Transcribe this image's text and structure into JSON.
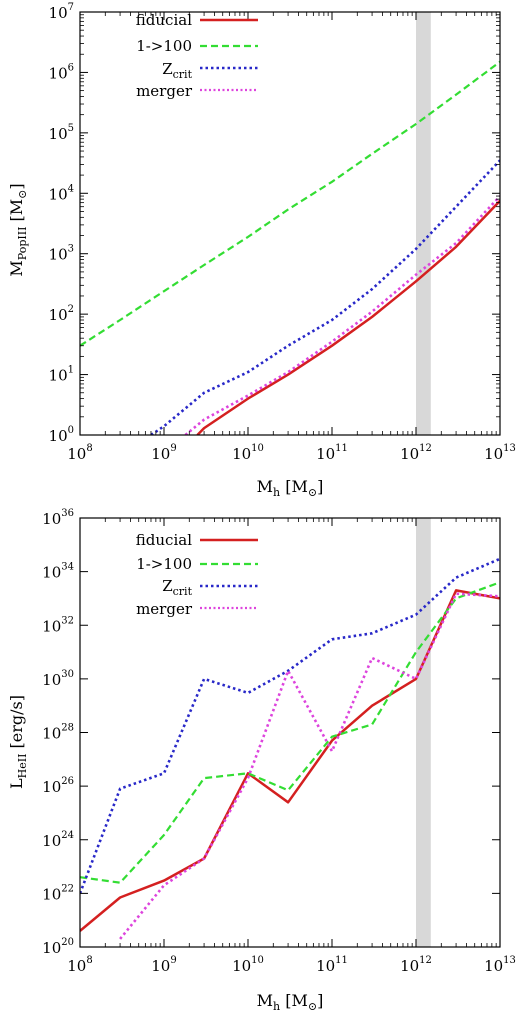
{
  "chart_data": [
    {
      "type": "line",
      "xscale": "log",
      "yscale": "log",
      "xlim": [
        100000000.0,
        10000000000000.0
      ],
      "ylim": [
        1,
        10000000.0
      ],
      "xlabel": {
        "main": "M",
        "sub": "h",
        "unit": " [M",
        "unit_sub": "⊙",
        "close": "]"
      },
      "ylabel": {
        "main": "M",
        "sub": "PopIII",
        "unit": " [M",
        "unit_sub": "⊙",
        "close": "]"
      },
      "xticks": [
        {
          "base": "10",
          "exp": "8"
        },
        {
          "base": "10",
          "exp": "9"
        },
        {
          "base": "10",
          "exp": "10"
        },
        {
          "base": "10",
          "exp": "11"
        },
        {
          "base": "10",
          "exp": "12"
        },
        {
          "base": "10",
          "exp": "13"
        }
      ],
      "yticks": [
        {
          "base": "10",
          "exp": "0"
        },
        {
          "base": "10",
          "exp": "1"
        },
        {
          "base": "10",
          "exp": "2"
        },
        {
          "base": "10",
          "exp": "3"
        },
        {
          "base": "10",
          "exp": "4"
        },
        {
          "base": "10",
          "exp": "5"
        },
        {
          "base": "10",
          "exp": "6"
        },
        {
          "base": "10",
          "exp": "7"
        }
      ],
      "shaded_band_x": [
        1000000000000.0,
        1500000000000.0
      ],
      "legend_position": "top-left",
      "series": [
        {
          "name": "fiducial",
          "color": "#d42020",
          "dash": "solid",
          "x": [
            2500000000.0,
            3000000000.0,
            10000000000.0,
            30000000000.0,
            100000000000.0,
            300000000000.0,
            1000000000000.0,
            3000000000000.0,
            10000000000000.0
          ],
          "y": [
            1,
            1.3,
            4,
            10,
            30,
            90,
            350,
            1300,
            7500
          ]
        },
        {
          "name": "1->100",
          "color": "#33dd33",
          "dash": "dashed",
          "x": [
            100000000.0,
            300000000.0,
            1000000000.0,
            3000000000.0,
            10000000000.0,
            30000000000.0,
            100000000000.0,
            300000000000.0,
            1000000000000.0,
            3000000000000.0,
            10000000000000.0
          ],
          "y": [
            30,
            80,
            240,
            650,
            1900,
            5400,
            15500,
            45000,
            140000,
            430000,
            1500000
          ]
        },
        {
          "name": "Z_crit",
          "color": "#2828c8",
          "dash": "dotted",
          "x": [
            700000000.0,
            1000000000.0,
            3000000000.0,
            10000000000.0,
            30000000000.0,
            100000000000.0,
            300000000000.0,
            1000000000000.0,
            3000000000000.0,
            10000000000000.0
          ],
          "y": [
            1,
            1.4,
            5,
            11,
            30,
            80,
            260,
            1200,
            6000,
            35000
          ]
        },
        {
          "name": "merger",
          "color": "#dd44dd",
          "dash": "dotted",
          "x": [
            1800000000.0,
            3000000000.0,
            10000000000.0,
            30000000000.0,
            100000000000.0,
            300000000000.0,
            1000000000000.0,
            3000000000000.0,
            10000000000000.0
          ],
          "y": [
            1,
            1.8,
            4.5,
            11,
            35,
            110,
            450,
            1500,
            9000
          ]
        }
      ]
    },
    {
      "type": "line",
      "xscale": "log",
      "yscale": "log",
      "xlim": [
        100000000.0,
        10000000000000.0
      ],
      "ylim": [
        1e+20,
        1e+36
      ],
      "xlabel": {
        "main": "M",
        "sub": "h",
        "unit": " [M",
        "unit_sub": "⊙",
        "close": "]"
      },
      "ylabel": {
        "main": "L",
        "sub": "HeII",
        "unit": " [erg/s]",
        "unit_sub": "",
        "close": ""
      },
      "xticks": [
        {
          "base": "10",
          "exp": "8"
        },
        {
          "base": "10",
          "exp": "9"
        },
        {
          "base": "10",
          "exp": "10"
        },
        {
          "base": "10",
          "exp": "11"
        },
        {
          "base": "10",
          "exp": "12"
        },
        {
          "base": "10",
          "exp": "13"
        }
      ],
      "yticks": [
        {
          "base": "10",
          "exp": "20"
        },
        {
          "base": "10",
          "exp": "22"
        },
        {
          "base": "10",
          "exp": "24"
        },
        {
          "base": "10",
          "exp": "26"
        },
        {
          "base": "10",
          "exp": "28"
        },
        {
          "base": "10",
          "exp": "30"
        },
        {
          "base": "10",
          "exp": "32"
        },
        {
          "base": "10",
          "exp": "34"
        },
        {
          "base": "10",
          "exp": "36"
        }
      ],
      "shaded_band_x": [
        1000000000000.0,
        1500000000000.0
      ],
      "legend_position": "top-left",
      "series": [
        {
          "name": "fiducial",
          "color": "#d42020",
          "dash": "solid",
          "x": [
            100000000.0,
            300000000.0,
            1000000000.0,
            3000000000.0,
            10000000000.0,
            30000000000.0,
            100000000000.0,
            300000000000.0,
            1000000000000.0,
            3000000000000.0,
            10000000000000.0
          ],
          "y": [
            4e+20,
            7e+21,
            3e+22,
            2e+23,
            3e+26,
            2.5e+25,
            5e+27,
            1e+29,
            1e+30,
            2e+33,
            1e+33
          ]
        },
        {
          "name": "1->100",
          "color": "#33dd33",
          "dash": "dashed",
          "x": [
            100000000.0,
            300000000.0,
            1000000000.0,
            3000000000.0,
            10000000000.0,
            30000000000.0,
            100000000000.0,
            300000000000.0,
            1000000000000.0,
            3000000000000.0,
            10000000000000.0
          ],
          "y": [
            4e+22,
            2.5e+22,
            1.5e+24,
            2e+26,
            3e+26,
            7e+25,
            7e+27,
            2e+28,
            1e+31,
            1e+33,
            4e+33
          ]
        },
        {
          "name": "Z_crit",
          "color": "#2828c8",
          "dash": "dotted",
          "x": [
            100000000.0,
            300000000.0,
            1000000000.0,
            3000000000.0,
            10000000000.0,
            30000000000.0,
            100000000000.0,
            300000000000.0,
            1000000000000.0,
            3000000000000.0,
            10000000000000.0
          ],
          "y": [
            1e+22,
            8e+25,
            3e+26,
            1e+30,
            3e+29,
            2e+30,
            3e+31,
            5e+31,
            2.5e+32,
            6e+33,
            3e+34
          ]
        },
        {
          "name": "merger",
          "color": "#dd44dd",
          "dash": "dotted",
          "x": [
            300000000.0,
            1000000000.0,
            3000000000.0,
            10000000000.0,
            30000000000.0,
            100000000000.0,
            300000000000.0,
            1000000000000.0,
            3000000000000.0,
            10000000000000.0
          ],
          "y": [
            2e+20,
            2e+22,
            2e+23,
            2e+26,
            2e+30,
            2e+27,
            6e+30,
            1e+30,
            1.5e+33,
            1.2e+33
          ]
        }
      ]
    }
  ],
  "legend_labels": {
    "fiducial": "fiducial",
    "onehundred": "1->100",
    "zcrit_main": "Z",
    "zcrit_sub": "crit",
    "merger": "merger"
  }
}
